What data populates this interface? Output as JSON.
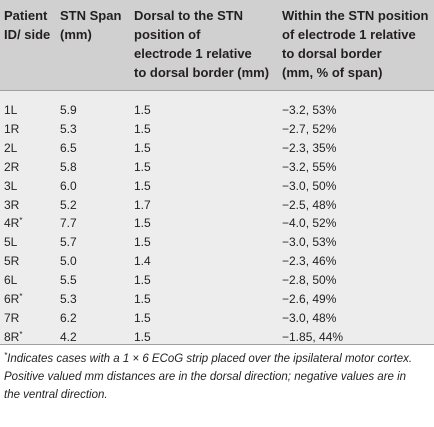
{
  "table": {
    "headers": {
      "patient": [
        "Patient",
        "ID/ side"
      ],
      "span": [
        "STN Span",
        "(mm)"
      ],
      "dorsal": [
        "Dorsal to the STN",
        "position of",
        "electrode 1 relative",
        "to dorsal border (mm)"
      ],
      "within": [
        "Within the STN position",
        "of electrode 1 relative",
        "to dorsal border",
        "(mm, % of span)"
      ]
    },
    "rows": [
      {
        "id": "1L",
        "mark": "",
        "span": "5.9",
        "dorsal": "1.5",
        "within": "−3.2,  53%"
      },
      {
        "id": "1R",
        "mark": "",
        "span": "5.3",
        "dorsal": "1.5",
        "within": "−2.7,  52%"
      },
      {
        "id": "2L",
        "mark": "",
        "span": "6.5",
        "dorsal": "1.5",
        "within": "−2.3,  35%"
      },
      {
        "id": "2R",
        "mark": "",
        "span": "5.8",
        "dorsal": "1.5",
        "within": "−3.2,  55%"
      },
      {
        "id": "3L",
        "mark": "",
        "span": "6.0",
        "dorsal": "1.5",
        "within": "−3.0,  50%"
      },
      {
        "id": "3R",
        "mark": "",
        "span": "5.2",
        "dorsal": "1.7",
        "within": "−2.5,  48%"
      },
      {
        "id": "4R",
        "mark": "*",
        "span": "7.7",
        "dorsal": "1.5",
        "within": "−4.0,  52%"
      },
      {
        "id": "5L",
        "mark": "",
        "span": "5.7",
        "dorsal": "1.5",
        "within": "−3.0,  53%"
      },
      {
        "id": "5R",
        "mark": "",
        "span": "5.0",
        "dorsal": "1.4",
        "within": "−2.3,  46%"
      },
      {
        "id": "6L",
        "mark": "",
        "span": "5.5",
        "dorsal": "1.5",
        "within": "−2.8,  50%"
      },
      {
        "id": "6R",
        "mark": "*",
        "span": "5.3",
        "dorsal": "1.5",
        "within": "−2.6,  49%"
      },
      {
        "id": "7R",
        "mark": "",
        "span": "6.2",
        "dorsal": "1.5",
        "within": "−3.0,  48%"
      },
      {
        "id": "8R",
        "mark": "*",
        "span": "4.2",
        "dorsal": "1.5",
        "within": "−1.85,  44%"
      }
    ]
  },
  "footnote": {
    "mark": "*",
    "lines": [
      "Indicates cases with a 1 × 6 ECoG strip placed over the ipsilateral motor cortex.",
      "Positive valued mm distances are in the dorsal direction; negative values are in",
      "the ventral direction."
    ]
  }
}
